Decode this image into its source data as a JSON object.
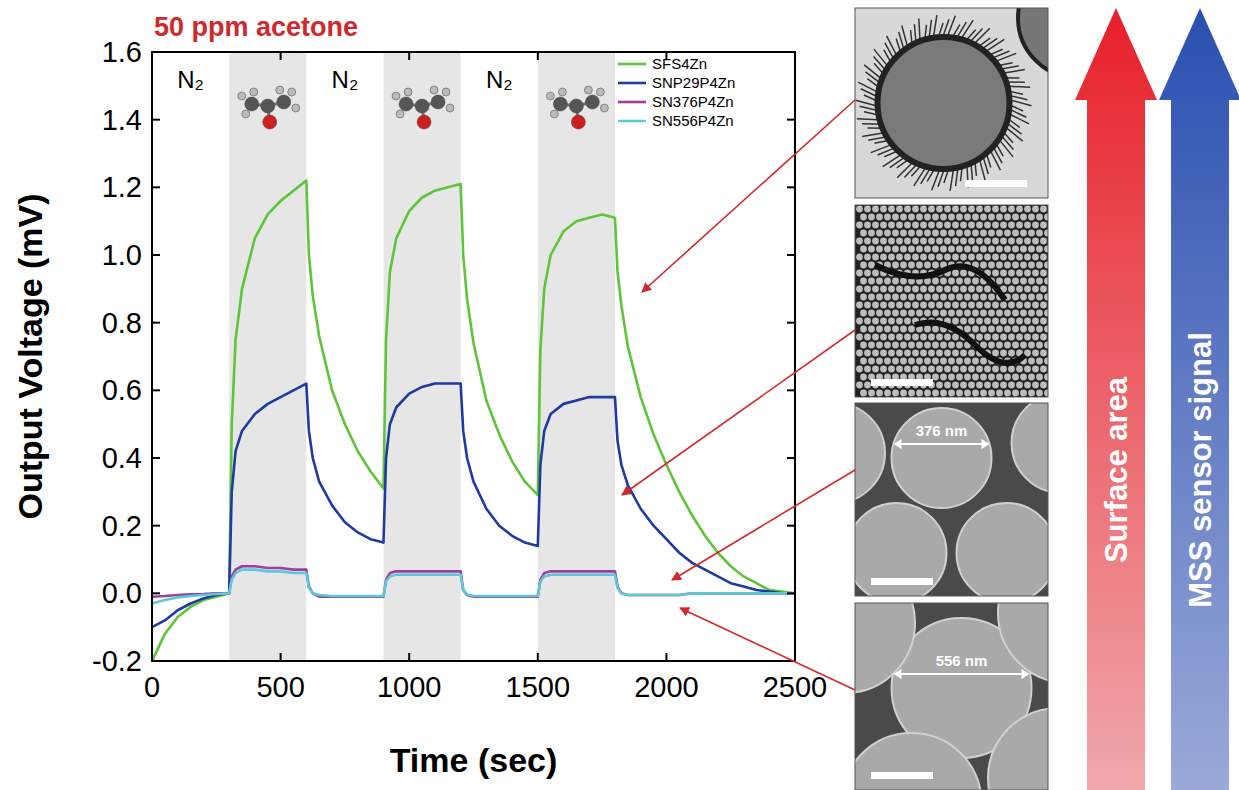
{
  "chart_data": {
    "type": "line",
    "title": "50 ppm acetone",
    "x_label": "Time (sec)",
    "y_label": "Output Voltage (mV)",
    "xlim": [
      0,
      2500
    ],
    "xticks": [
      0,
      500,
      1000,
      1500,
      2000,
      2500
    ],
    "ylim": [
      -0.2,
      1.6
    ],
    "yticks": [
      -0.2,
      {
        "value": 0,
        "label": "0.0"
      },
      0.2,
      0.4,
      0.6,
      0.8,
      {
        "value": 1,
        "label": "1.0"
      },
      1.2,
      1.4,
      1.6
    ],
    "legend": "upper right",
    "grid": false,
    "acetone_windows": [
      [
        300,
        600
      ],
      [
        900,
        1200
      ],
      [
        1500,
        1800
      ]
    ],
    "gas_labels": [
      {
        "x": 150,
        "text": "N₂"
      },
      {
        "x": 750,
        "text": "N₂"
      },
      {
        "x": 1350,
        "text": "N₂"
      }
    ],
    "image_labels": [
      "376 nm",
      "556 nm"
    ],
    "arrow_labels": [
      "Surface area",
      "MSS sensor signal"
    ],
    "x": [
      0,
      50,
      100,
      150,
      200,
      250,
      300,
      310,
      325,
      350,
      400,
      450,
      500,
      550,
      600,
      610,
      625,
      650,
      700,
      750,
      800,
      850,
      900,
      910,
      925,
      950,
      1000,
      1050,
      1100,
      1150,
      1200,
      1210,
      1225,
      1250,
      1300,
      1350,
      1400,
      1450,
      1500,
      1510,
      1525,
      1550,
      1600,
      1650,
      1700,
      1750,
      1800,
      1810,
      1825,
      1850,
      1900,
      1950,
      2000,
      2050,
      2100,
      2150,
      2200,
      2250,
      2300,
      2350,
      2400,
      2450,
      2500
    ],
    "series": [
      {
        "name": "SFS4Zn",
        "color": "#5ec43a",
        "values": [
          -0.2,
          -0.12,
          -0.07,
          -0.04,
          -0.02,
          -0.01,
          0.0,
          0.5,
          0.75,
          0.9,
          1.05,
          1.12,
          1.16,
          1.19,
          1.22,
          1.0,
          0.88,
          0.76,
          0.6,
          0.5,
          0.42,
          0.36,
          0.31,
          0.75,
          0.95,
          1.05,
          1.13,
          1.17,
          1.19,
          1.2,
          1.21,
          1.0,
          0.87,
          0.74,
          0.57,
          0.47,
          0.39,
          0.33,
          0.29,
          0.72,
          0.9,
          1.0,
          1.07,
          1.1,
          1.11,
          1.12,
          1.11,
          0.95,
          0.85,
          0.73,
          0.58,
          0.47,
          0.38,
          0.3,
          0.23,
          0.17,
          0.12,
          0.08,
          0.05,
          0.03,
          0.01,
          0.005,
          0.0
        ]
      },
      {
        "name": "SNP29P4Zn",
        "color": "#1f3aa0",
        "values": [
          -0.1,
          -0.08,
          -0.05,
          -0.03,
          -0.015,
          -0.005,
          0.0,
          0.3,
          0.42,
          0.48,
          0.53,
          0.56,
          0.58,
          0.6,
          0.62,
          0.48,
          0.4,
          0.33,
          0.26,
          0.21,
          0.18,
          0.16,
          0.15,
          0.4,
          0.5,
          0.55,
          0.59,
          0.61,
          0.62,
          0.62,
          0.62,
          0.48,
          0.4,
          0.33,
          0.25,
          0.2,
          0.17,
          0.15,
          0.14,
          0.38,
          0.48,
          0.53,
          0.56,
          0.57,
          0.58,
          0.58,
          0.58,
          0.45,
          0.38,
          0.32,
          0.25,
          0.2,
          0.16,
          0.12,
          0.09,
          0.07,
          0.05,
          0.03,
          0.02,
          0.01,
          0.005,
          0.0,
          0.0
        ]
      },
      {
        "name": "SN376P4Zn",
        "color": "#9b3fa0",
        "values": [
          -0.01,
          -0.008,
          -0.005,
          -0.003,
          -0.002,
          0.0,
          0.0,
          0.05,
          0.07,
          0.08,
          0.08,
          0.075,
          0.075,
          0.07,
          0.07,
          0.02,
          0.0,
          -0.01,
          -0.01,
          -0.01,
          -0.01,
          -0.01,
          -0.01,
          0.04,
          0.06,
          0.065,
          0.065,
          0.065,
          0.065,
          0.065,
          0.065,
          0.01,
          -0.005,
          -0.01,
          -0.01,
          -0.01,
          -0.01,
          -0.01,
          -0.01,
          0.04,
          0.06,
          0.065,
          0.065,
          0.065,
          0.065,
          0.065,
          0.065,
          0.02,
          0.0,
          -0.005,
          -0.005,
          -0.005,
          -0.005,
          -0.005,
          0.0,
          0.0,
          0.0,
          0.0,
          0.0,
          0.0,
          0.0,
          0.0,
          0.0
        ]
      },
      {
        "name": "SN556P4Zn",
        "color": "#5cc8d8",
        "values": [
          -0.03,
          -0.02,
          -0.012,
          -0.008,
          -0.005,
          -0.002,
          0.0,
          0.04,
          0.06,
          0.07,
          0.07,
          0.065,
          0.065,
          0.06,
          0.06,
          0.015,
          0.0,
          -0.005,
          -0.008,
          -0.008,
          -0.008,
          -0.008,
          -0.008,
          0.035,
          0.05,
          0.055,
          0.055,
          0.055,
          0.055,
          0.055,
          0.055,
          0.01,
          -0.003,
          -0.008,
          -0.008,
          -0.008,
          -0.008,
          -0.008,
          -0.008,
          0.035,
          0.05,
          0.055,
          0.055,
          0.055,
          0.055,
          0.055,
          0.055,
          0.015,
          0.0,
          -0.005,
          -0.005,
          -0.005,
          -0.005,
          -0.005,
          0.0,
          0.0,
          0.0,
          0.0,
          0.0,
          0.0,
          0.0,
          0.0,
          0.0
        ]
      }
    ]
  }
}
